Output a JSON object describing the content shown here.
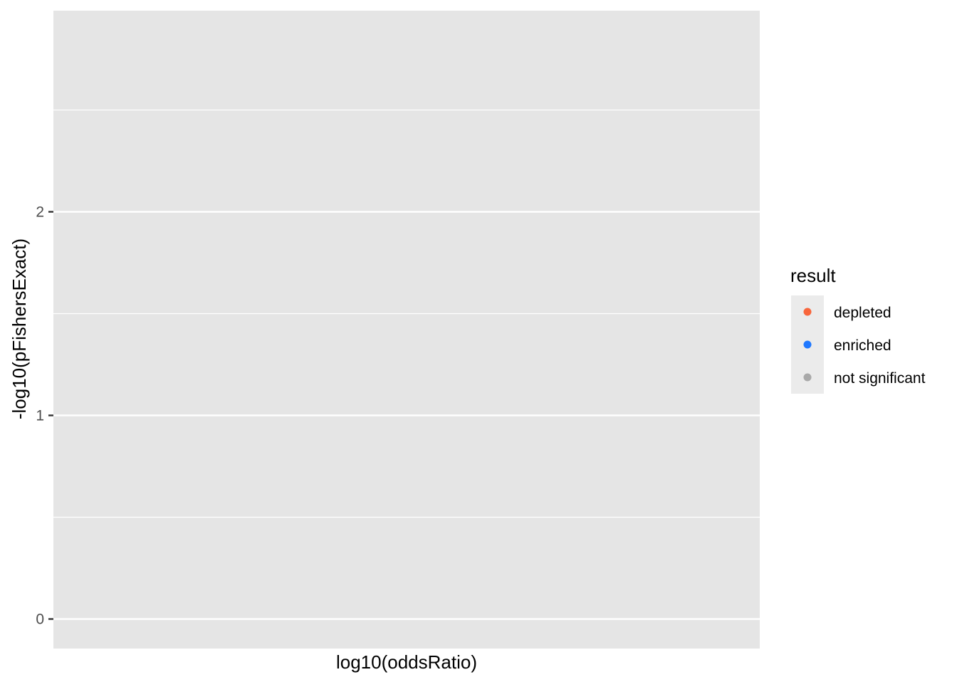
{
  "chart_data": {
    "type": "scatter",
    "title": "",
    "xlabel": "log10(oddsRatio)",
    "ylabel": "-log10(pFishersExact)",
    "ylim": [
      -0.14,
      2.99
    ],
    "y_ticks": [
      "0",
      "1",
      "2"
    ],
    "y_tick_values": [
      0,
      1,
      2
    ],
    "y_minor_values": [
      0.5,
      1.5,
      2.5
    ],
    "x_ticks": [],
    "grid": true,
    "legend_position": "right",
    "series": [
      {
        "name": "depleted",
        "values": []
      },
      {
        "name": "enriched",
        "values": []
      },
      {
        "name": "not significant",
        "values": []
      }
    ]
  },
  "legend": {
    "title": "result",
    "items": [
      {
        "label": "depleted",
        "color": "#F8663C"
      },
      {
        "label": "enriched",
        "color": "#1F78FF"
      },
      {
        "label": "not significant",
        "color": "#A9A9A9"
      }
    ]
  },
  "colors": {
    "panel_background": "#E5E5E5",
    "grid_line": "#FFFFFF",
    "legend_key_background": "#EBEBEB",
    "tick_mark": "#333333",
    "tick_label": "#4D4D4D",
    "axis_title": "#000000"
  }
}
